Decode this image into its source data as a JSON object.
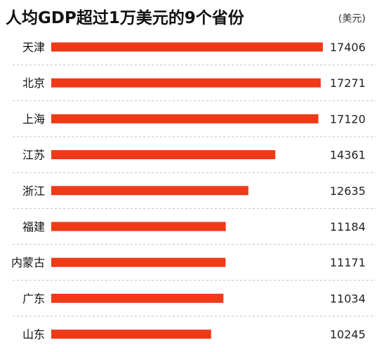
{
  "chart_data": {
    "type": "bar",
    "orientation": "horizontal",
    "title": "人均GDP超过1万美元的9个省份",
    "unit": "(美元)",
    "categories": [
      "天津",
      "北京",
      "上海",
      "江苏",
      "浙江",
      "福建",
      "内蒙古",
      "广东",
      "山东"
    ],
    "values": [
      17406,
      17271,
      17120,
      14361,
      12635,
      11184,
      11171,
      11034,
      10245
    ],
    "value_labels": [
      "17406",
      "17271",
      "17120",
      "14361",
      "12635",
      "11184",
      "11171",
      "11034",
      "10245"
    ],
    "xlim": [
      0,
      17406
    ],
    "grid": false,
    "legend": false,
    "bar_color": "#f03a17",
    "separator_color": "#bfbfbf"
  }
}
